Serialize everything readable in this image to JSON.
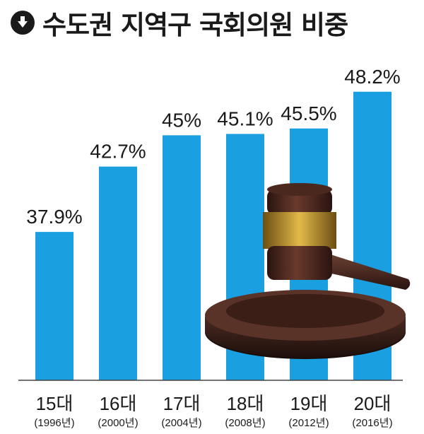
{
  "header": {
    "icon": "down-arrow-circle-icon",
    "title": "수도권 지역구 국회의원 비중"
  },
  "colors": {
    "bar": "#1aa0e0",
    "text": "#1a1a1a",
    "baseline": "#444444"
  },
  "chart_data": {
    "type": "bar",
    "title": "수도권 지역구 국회의원 비중",
    "categories": [
      "15대",
      "16대",
      "17대",
      "18대",
      "19대",
      "20대"
    ],
    "sublabels": [
      "(1996년)",
      "(2000년)",
      "(2004년)",
      "(2008년)",
      "(2012년)",
      "(2016년)"
    ],
    "values": [
      37.9,
      42.7,
      45,
      45.1,
      45.5,
      48.2
    ],
    "value_labels": [
      "37.9%",
      "42.7%",
      "45%",
      "45.1%",
      "45.5%",
      "48.2%"
    ],
    "xlabel": "",
    "ylabel": "",
    "ylim": [
      27,
      48.5
    ],
    "grid": false,
    "legend": "none",
    "decoration": "gavel-image"
  }
}
